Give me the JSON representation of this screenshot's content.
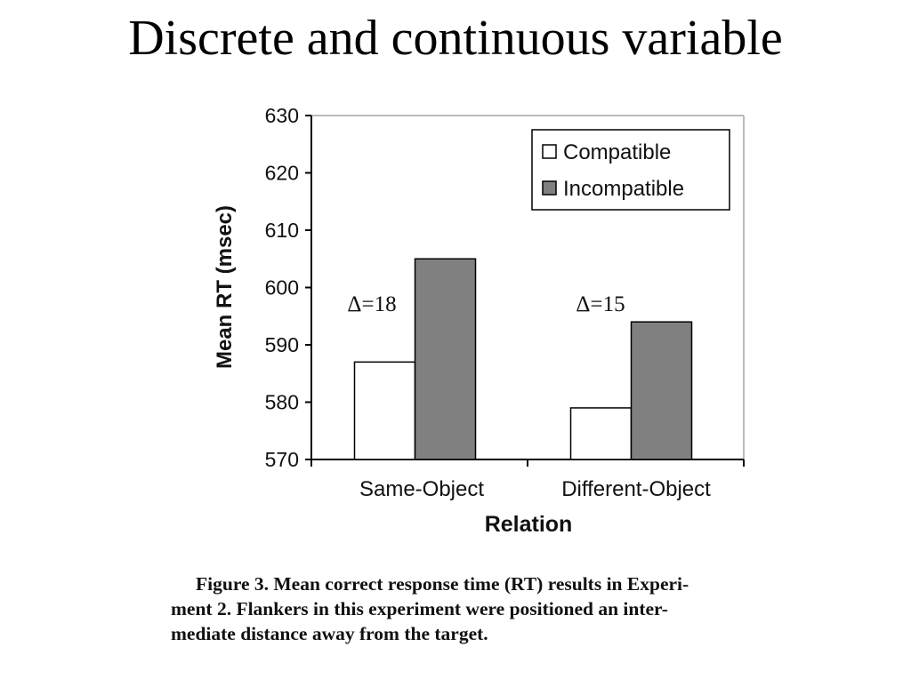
{
  "slide": {
    "title": "Discrete and continuous variable"
  },
  "chart_data": {
    "type": "bar",
    "categories": [
      "Same-Object",
      "Different-Object"
    ],
    "series": [
      {
        "name": "Compatible",
        "values": [
          587,
          579
        ],
        "color": "#ffffff"
      },
      {
        "name": "Incompatible",
        "values": [
          605,
          594
        ],
        "color": "#808080"
      }
    ],
    "title": "",
    "xlabel": "Relation",
    "ylabel": "Mean RT (msec)",
    "ylim": [
      570,
      630
    ],
    "yticks": [
      570,
      580,
      590,
      600,
      610,
      620,
      630
    ],
    "ytick_labels": [
      "570",
      "580",
      "590",
      "600",
      "610",
      "620",
      "630"
    ],
    "grid": false,
    "legend": "top-right",
    "annotations": [
      "Δ=18",
      "Δ=15"
    ]
  },
  "caption": {
    "lines": [
      "Figure 3. Mean correct response time (RT) results in Experi-",
      "ment 2. Flankers in this experiment were positioned an inter-",
      "mediate distance away from the target."
    ]
  }
}
